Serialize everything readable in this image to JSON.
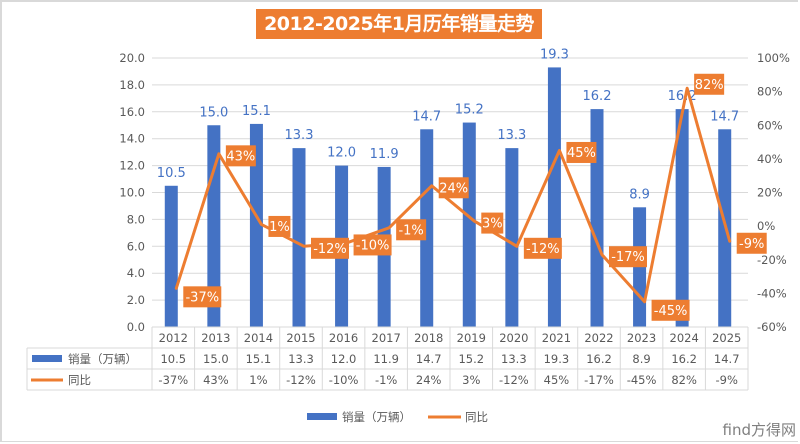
{
  "chart_data": {
    "type": "bar",
    "title": "2012-2025年1月历年销量走势",
    "categories": [
      "2012",
      "2013",
      "2014",
      "2015",
      "2016",
      "2017",
      "2018",
      "2019",
      "2020",
      "2021",
      "2022",
      "2023",
      "2024",
      "2025"
    ],
    "series": [
      {
        "name": "销量（万辆）",
        "type": "bar",
        "axis": "left",
        "color": "#4472c4",
        "values": [
          10.5,
          15.0,
          15.1,
          13.3,
          12.0,
          11.9,
          14.7,
          15.2,
          13.3,
          19.3,
          16.2,
          8.9,
          16.2,
          14.7
        ],
        "labels": [
          "10.5",
          "15.0",
          "15.1",
          "13.3",
          "12.0",
          "11.9",
          "14.7",
          "15.2",
          "13.3",
          "19.3",
          "16.2",
          "8.9",
          "16.2",
          "14.7"
        ]
      },
      {
        "name": "同比",
        "type": "line",
        "axis": "right",
        "color": "#ed7d31",
        "values": [
          -37,
          43,
          1,
          -12,
          -10,
          -1,
          24,
          3,
          -12,
          45,
          -17,
          -45,
          82,
          -9
        ],
        "labels": [
          "-37%",
          "43%",
          "1%",
          "-12%",
          "-10%",
          "-1%",
          "24%",
          "3%",
          "-12%",
          "45%",
          "-17%",
          "-45%",
          "82%",
          "-9%"
        ]
      }
    ],
    "y_left": {
      "ylim": [
        0,
        20
      ],
      "ticks": [
        "0.0",
        "2.0",
        "4.0",
        "6.0",
        "8.0",
        "10.0",
        "12.0",
        "14.0",
        "16.0",
        "18.0",
        "20.0"
      ]
    },
    "y_right": {
      "ylim": [
        -60,
        100
      ],
      "ticks": [
        "-60%",
        "-40%",
        "-20%",
        "0%",
        "20%",
        "40%",
        "60%",
        "80%",
        "100%"
      ]
    },
    "grid": true,
    "data_table": true,
    "legend": "bottom-center"
  },
  "watermark": "find方得网"
}
